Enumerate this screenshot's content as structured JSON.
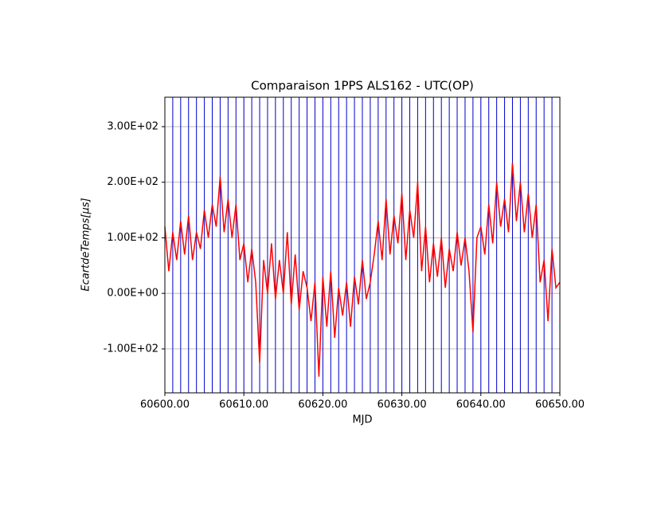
{
  "chart_data": {
    "type": "line",
    "title": "Comparaison 1PPS ALS162 - UTC(OP)",
    "x_label": "MJD",
    "y_label": "EcartdeTemps[μs]",
    "xlim": [
      60600,
      60650
    ],
    "ylim": [
      -179,
      353
    ],
    "xticks": [
      {
        "value": 60600,
        "label": "60600.00"
      },
      {
        "value": 60610,
        "label": "60610.00"
      },
      {
        "value": 60620,
        "label": "60620.00"
      },
      {
        "value": 60630,
        "label": "60630.00"
      },
      {
        "value": 60640,
        "label": "60640.00"
      },
      {
        "value": 60650,
        "label": "60650.00"
      }
    ],
    "yticks": [
      {
        "value": -100,
        "label": "-1.00E+02"
      },
      {
        "value": 0,
        "label": "0.00E+00"
      },
      {
        "value": 100,
        "label": "1.00E+02"
      },
      {
        "value": 200,
        "label": "2.00E+02"
      },
      {
        "value": 300,
        "label": "3.00E+02"
      }
    ],
    "grid": true,
    "vlines": [
      60600,
      60601,
      60602,
      60603,
      60604,
      60605,
      60606,
      60607,
      60608,
      60609,
      60610,
      60611,
      60612,
      60613,
      60614,
      60615,
      60616,
      60617,
      60618,
      60619,
      60620,
      60621,
      60622,
      60623,
      60624,
      60625,
      60626,
      60627,
      60628,
      60629,
      60630,
      60631,
      60632,
      60633,
      60634,
      60635,
      60636,
      60637,
      60638,
      60639,
      60640,
      60641,
      60642,
      60643,
      60644,
      60645,
      60646,
      60647,
      60648,
      60649,
      60650
    ],
    "vline_color": "#0000cc",
    "x": [
      60600,
      60600.5,
      60601,
      60601.5,
      60602,
      60602.5,
      60603,
      60603.5,
      60604,
      60604.5,
      60605,
      60605.5,
      60606,
      60606.5,
      60607,
      60607.5,
      60608,
      60608.5,
      60609,
      60609.5,
      60610,
      60610.5,
      60611,
      60611.5,
      60612,
      60612.5,
      60613,
      60613.5,
      60614,
      60614.5,
      60615,
      60615.5,
      60616,
      60616.5,
      60617,
      60617.5,
      60618,
      60618.5,
      60619,
      60619.5,
      60620,
      60620.5,
      60621,
      60621.5,
      60622,
      60622.5,
      60623,
      60623.5,
      60624,
      60624.5,
      60625,
      60625.5,
      60626,
      60626.5,
      60627,
      60627.5,
      60628,
      60628.5,
      60629,
      60629.5,
      60630,
      60630.5,
      60631,
      60631.5,
      60632,
      60632.5,
      60633,
      60633.5,
      60634,
      60634.5,
      60635,
      60635.5,
      60636,
      60636.5,
      60637,
      60637.5,
      60638,
      60638.5,
      60639,
      60639.5,
      60640,
      60640.5,
      60641,
      60641.5,
      60642,
      60642.5,
      60643,
      60643.5,
      60644,
      60644.5,
      60645,
      60645.5,
      60646,
      60646.5,
      60647,
      60647.5,
      60648,
      60648.5,
      60649,
      60649.5,
      60650
    ],
    "series": [
      {
        "color": "#ff0000",
        "values": [
          120,
          40,
          110,
          60,
          130,
          70,
          140,
          60,
          110,
          80,
          150,
          100,
          160,
          120,
          210,
          110,
          170,
          100,
          160,
          60,
          90,
          20,
          80,
          20,
          -125,
          60,
          0,
          90,
          -10,
          60,
          0,
          110,
          -20,
          70,
          -30,
          40,
          10,
          -50,
          20,
          -150,
          30,
          -60,
          40,
          -80,
          10,
          -40,
          20,
          -60,
          30,
          -20,
          60,
          -10,
          20,
          70,
          130,
          60,
          170,
          70,
          140,
          90,
          180,
          60,
          150,
          100,
          200,
          40,
          120,
          20,
          90,
          30,
          100,
          10,
          80,
          40,
          110,
          50,
          100,
          40,
          -70,
          100,
          120,
          70,
          160,
          90,
          200,
          120,
          170,
          110,
          235,
          130,
          200,
          110,
          180,
          100,
          160,
          20,
          60,
          -50,
          80,
          10,
          20
        ]
      }
    ]
  }
}
